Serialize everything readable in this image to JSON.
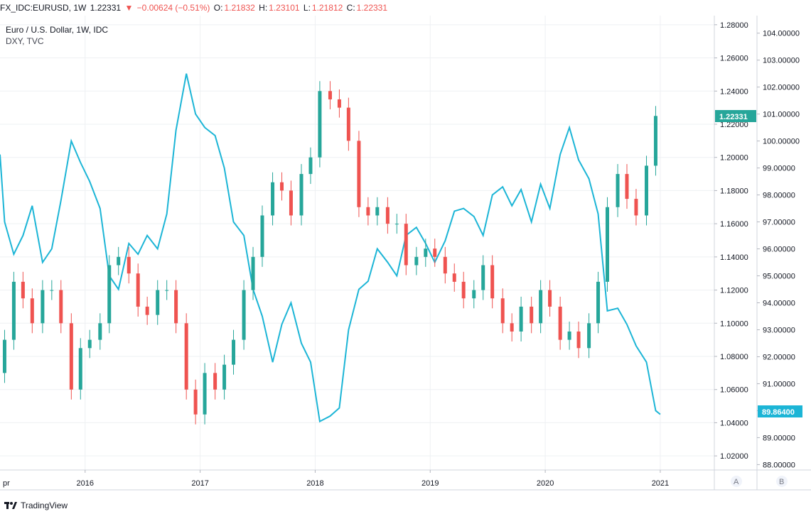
{
  "header": {
    "symbol": "FX_IDC:EURUSD, 1W",
    "last": "1.22331",
    "change": "−0.00624 (−0.51%)",
    "o_label": "O:",
    "o": "1.21832",
    "h_label": "H:",
    "h": "1.23101",
    "l_label": "L:",
    "l": "1.21812",
    "c_label": "C:",
    "c": "1.22331"
  },
  "legend": {
    "main": "Euro / U.S. Dollar, 1W, IDC",
    "compare": "DXY, TVC"
  },
  "footer": {
    "brand": "TradingView"
  },
  "scale_buttons": {
    "left": "A",
    "right": "B"
  },
  "colors": {
    "up": "#26a69a",
    "down": "#ef5350",
    "dxy": "#1cb5d6",
    "grid": "#eef0f3"
  },
  "chart_data": {
    "type": "candlestick-with-line-overlay",
    "x_axis": {
      "start_label": "pr",
      "labels": [
        "2016",
        "2017",
        "2018",
        "2019",
        "2020",
        "2021"
      ],
      "range": [
        2015.26,
        2021.47
      ]
    },
    "y_axis_A": {
      "ticks": [
        "1.28000",
        "1.26000",
        "1.24000",
        "1.22000",
        "1.20000",
        "1.18000",
        "1.16000",
        "1.14000",
        "1.12000",
        "1.10000",
        "1.08000",
        "1.06000",
        "1.04000",
        "1.02000"
      ],
      "range": [
        1.0115,
        1.2855
      ],
      "current_value_badge": "1.22331"
    },
    "y_axis_B": {
      "ticks": [
        "104.00000",
        "103.00000",
        "102.00000",
        "101.00000",
        "100.00000",
        "99.00000",
        "98.00000",
        "97.00000",
        "96.00000",
        "95.00000",
        "94.00000",
        "93.00000",
        "92.00000",
        "91.00000",
        "90.00000",
        "89.00000",
        "88.00000"
      ],
      "range": [
        87.8,
        104.65
      ],
      "current_value_badge": "89.86400"
    },
    "series": [
      {
        "name": "Euro / U.S. Dollar, 1W, IDC",
        "type": "candlestick-approx-monthly-close",
        "x": [
          2015.3,
          2015.38,
          2015.46,
          2015.54,
          2015.63,
          2015.71,
          2015.79,
          2015.88,
          2015.96,
          2016.04,
          2016.13,
          2016.21,
          2016.29,
          2016.38,
          2016.46,
          2016.54,
          2016.63,
          2016.71,
          2016.79,
          2016.88,
          2016.96,
          2017.04,
          2017.13,
          2017.21,
          2017.29,
          2017.38,
          2017.46,
          2017.54,
          2017.63,
          2017.71,
          2017.79,
          2017.88,
          2017.96,
          2018.04,
          2018.13,
          2018.21,
          2018.29,
          2018.38,
          2018.46,
          2018.54,
          2018.63,
          2018.71,
          2018.79,
          2018.88,
          2018.96,
          2019.04,
          2019.13,
          2019.21,
          2019.29,
          2019.38,
          2019.46,
          2019.54,
          2019.63,
          2019.71,
          2019.79,
          2019.88,
          2019.96,
          2020.04,
          2020.13,
          2020.21,
          2020.29,
          2020.38,
          2020.46,
          2020.54,
          2020.63,
          2020.71,
          2020.79,
          2020.88,
          2020.96
        ],
        "close": [
          1.09,
          1.125,
          1.115,
          1.1,
          1.12,
          1.12,
          1.1,
          1.06,
          1.085,
          1.09,
          1.1,
          1.135,
          1.14,
          1.13,
          1.11,
          1.105,
          1.12,
          1.12,
          1.1,
          1.06,
          1.045,
          1.07,
          1.06,
          1.075,
          1.09,
          1.12,
          1.14,
          1.165,
          1.185,
          1.18,
          1.165,
          1.19,
          1.2,
          1.24,
          1.235,
          1.23,
          1.21,
          1.17,
          1.165,
          1.17,
          1.16,
          1.16,
          1.135,
          1.14,
          1.145,
          1.14,
          1.13,
          1.125,
          1.115,
          1.12,
          1.135,
          1.115,
          1.1,
          1.095,
          1.11,
          1.1,
          1.12,
          1.11,
          1.09,
          1.095,
          1.085,
          1.1,
          1.125,
          1.17,
          1.19,
          1.175,
          1.165,
          1.195,
          1.225
        ]
      },
      {
        "name": "DXY, TVC",
        "type": "line",
        "x": [
          2015.26,
          2015.3,
          2015.38,
          2015.46,
          2015.54,
          2015.63,
          2015.71,
          2015.79,
          2015.88,
          2015.96,
          2016.04,
          2016.13,
          2016.21,
          2016.29,
          2016.38,
          2016.46,
          2016.54,
          2016.63,
          2016.71,
          2016.79,
          2016.88,
          2016.96,
          2017.04,
          2017.13,
          2017.21,
          2017.29,
          2017.38,
          2017.46,
          2017.54,
          2017.63,
          2017.71,
          2017.79,
          2017.88,
          2017.96,
          2018.04,
          2018.13,
          2018.21,
          2018.29,
          2018.38,
          2018.46,
          2018.54,
          2018.63,
          2018.71,
          2018.79,
          2018.88,
          2018.96,
          2019.04,
          2019.13,
          2019.21,
          2019.29,
          2019.38,
          2019.46,
          2019.54,
          2019.63,
          2019.71,
          2019.79,
          2019.88,
          2019.96,
          2020.04,
          2020.13,
          2020.21,
          2020.29,
          2020.38,
          2020.46,
          2020.54,
          2020.63,
          2020.71,
          2020.79,
          2020.88,
          2020.96,
          2021.0
        ],
        "y": [
          99.5,
          97.0,
          95.8,
          96.5,
          97.6,
          95.5,
          96.0,
          97.8,
          100.0,
          99.2,
          98.5,
          97.5,
          95.0,
          94.5,
          96.2,
          95.8,
          96.5,
          96.0,
          97.3,
          100.4,
          102.5,
          101.0,
          100.5,
          100.2,
          99.0,
          97.0,
          96.5,
          94.5,
          93.5,
          91.8,
          93.2,
          94.0,
          92.5,
          91.8,
          89.6,
          89.8,
          90.1,
          93.0,
          94.5,
          94.8,
          96.0,
          95.5,
          95.0,
          96.5,
          96.8,
          96.2,
          95.5,
          96.3,
          97.4,
          97.5,
          97.2,
          96.5,
          98.0,
          98.3,
          97.6,
          98.2,
          97.0,
          98.4,
          97.5,
          99.5,
          100.5,
          99.3,
          98.6,
          97.3,
          93.7,
          93.8,
          93.2,
          92.4,
          91.8,
          90.0,
          89.864
        ]
      }
    ]
  }
}
